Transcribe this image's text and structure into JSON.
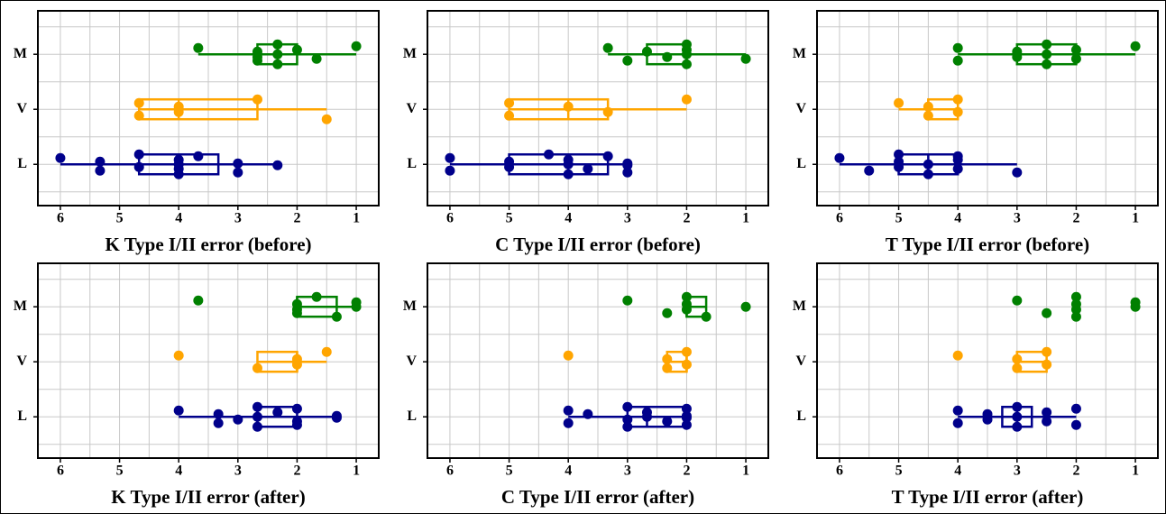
{
  "chart_data": [
    {
      "type": "box",
      "title": "K Type I/II error (before)",
      "categories": [
        "L",
        "V",
        "M"
      ],
      "colors": [
        "#00008b",
        "#ffa500",
        "#008000"
      ],
      "points": [
        [
          6,
          5.33,
          5.33,
          4.67,
          4.67,
          4,
          4,
          4,
          4,
          3.67,
          3,
          3,
          2.33
        ],
        [
          4.67,
          4.67,
          4,
          4,
          2.67,
          1.5
        ],
        [
          3.67,
          2.67,
          2.67,
          2.67,
          2.33,
          2.33,
          2.33,
          2,
          1.67,
          1
        ]
      ],
      "box": [
        [
          6,
          4.67,
          4,
          3.33,
          2.33
        ],
        [
          4.67,
          4.67,
          4,
          2.67,
          1.5
        ],
        [
          3.67,
          2.67,
          2.33,
          2,
          1
        ]
      ],
      "xlim": [
        6.38,
        0.62
      ],
      "xticks": [
        6,
        5,
        4,
        3,
        2,
        1
      ],
      "xminor": [
        5.5,
        4.5,
        3.5,
        2.5,
        1.5
      ],
      "grid": true
    },
    {
      "type": "box",
      "title": "C Type I/II error (before)",
      "categories": [
        "L",
        "V",
        "M"
      ],
      "colors": [
        "#00008b",
        "#ffa500",
        "#008000"
      ],
      "points": [
        [
          6,
          6,
          5,
          5,
          4.33,
          4,
          4,
          4,
          3.67,
          3.33,
          3,
          3,
          3
        ],
        [
          5,
          5,
          4,
          3.33,
          2
        ],
        [
          3.33,
          3,
          2.67,
          2.33,
          2,
          2,
          2,
          2,
          1
        ]
      ],
      "box": [
        [
          6,
          5,
          4,
          3.33,
          3
        ],
        [
          5,
          5,
          4,
          3.33,
          2
        ],
        [
          3.33,
          2.67,
          2,
          2,
          1
        ]
      ],
      "xlim": [
        6.38,
        0.62
      ],
      "xticks": [
        6,
        5,
        4,
        3,
        2,
        1
      ],
      "xminor": [
        5.5,
        4.5,
        3.5,
        2.5,
        1.5
      ],
      "grid": true
    },
    {
      "type": "box",
      "title": "T Type I/II error (before)",
      "categories": [
        "L",
        "V",
        "M"
      ],
      "colors": [
        "#00008b",
        "#ffa500",
        "#008000"
      ],
      "points": [
        [
          6,
          5.5,
          5,
          5,
          5,
          4.5,
          4.5,
          4,
          4,
          4,
          3
        ],
        [
          5,
          4.5,
          4.5,
          4,
          4
        ],
        [
          4,
          4,
          3,
          3,
          2.5,
          2.5,
          2.5,
          2,
          2,
          1
        ]
      ],
      "box": [
        [
          6,
          5,
          4.5,
          4,
          3
        ],
        [
          5,
          4.5,
          4.5,
          4,
          4
        ],
        [
          4,
          3,
          2.5,
          2,
          1
        ]
      ],
      "xlim": [
        6.38,
        0.62
      ],
      "xticks": [
        6,
        5,
        4,
        3,
        2,
        1
      ],
      "xminor": [
        5.5,
        4.5,
        3.5,
        2.5,
        1.5
      ],
      "grid": true
    },
    {
      "type": "box",
      "title": "K Type I/II error (after)",
      "categories": [
        "L",
        "V",
        "M"
      ],
      "colors": [
        "#00008b",
        "#ffa500",
        "#008000"
      ],
      "points": [
        [
          4,
          3.33,
          3.33,
          3,
          2.67,
          2.67,
          2.67,
          2.33,
          2,
          2,
          2,
          1.33,
          1.33
        ],
        [
          4,
          2.67,
          2,
          2,
          1.5
        ],
        [
          3.67,
          2,
          2,
          2,
          1.67,
          1.33,
          1,
          1
        ]
      ],
      "box": [
        [
          4,
          2.67,
          2.67,
          2,
          1.33
        ],
        [
          2.67,
          2.67,
          2,
          2,
          1.5
        ],
        [
          2,
          2,
          2,
          1.33,
          1
        ]
      ],
      "xlim": [
        6.38,
        0.62
      ],
      "xticks": [
        6,
        5,
        4,
        3,
        2,
        1
      ],
      "xminor": [
        5.5,
        4.5,
        3.5,
        2.5,
        1.5
      ],
      "grid": true
    },
    {
      "type": "box",
      "title": "C Type I/II error (after)",
      "categories": [
        "L",
        "V",
        "M"
      ],
      "colors": [
        "#00008b",
        "#ffa500",
        "#008000"
      ],
      "points": [
        [
          4,
          4,
          3.67,
          3,
          3,
          3,
          2.67,
          2.67,
          2.33,
          2,
          2,
          2,
          2
        ],
        [
          4,
          2.33,
          2.33,
          2,
          2
        ],
        [
          3,
          2.33,
          2,
          2,
          2,
          1.67,
          1
        ]
      ],
      "box": [
        [
          4,
          3,
          2.67,
          2,
          2
        ],
        [
          2.33,
          2.33,
          2,
          2,
          2
        ],
        [
          2,
          2,
          2,
          1.67,
          1.67
        ]
      ],
      "xlim": [
        6.38,
        0.62
      ],
      "xticks": [
        6,
        5,
        4,
        3,
        2,
        1
      ],
      "xminor": [
        5.5,
        4.5,
        3.5,
        2.5,
        1.5
      ],
      "grid": true
    },
    {
      "type": "box",
      "title": "T Type I/II error (after)",
      "categories": [
        "L",
        "V",
        "M"
      ],
      "colors": [
        "#00008b",
        "#ffa500",
        "#008000"
      ],
      "points": [
        [
          4,
          4,
          3.5,
          3.5,
          3,
          3,
          3,
          2.5,
          2.5,
          2,
          2
        ],
        [
          4,
          3,
          3,
          2.5,
          2.5
        ],
        [
          3,
          2.5,
          2,
          2,
          2,
          2,
          1,
          1
        ]
      ],
      "box": [
        [
          4,
          3.25,
          3,
          2.75,
          2
        ],
        [
          3,
          3,
          3,
          2.5,
          2.5
        ],
        [
          2,
          2,
          2,
          2,
          2
        ]
      ],
      "xlim": [
        6.38,
        0.62
      ],
      "xticks": [
        6,
        5,
        4,
        3,
        2,
        1
      ],
      "xminor": [
        5.5,
        4.5,
        3.5,
        2.5,
        1.5
      ],
      "grid": true
    }
  ]
}
